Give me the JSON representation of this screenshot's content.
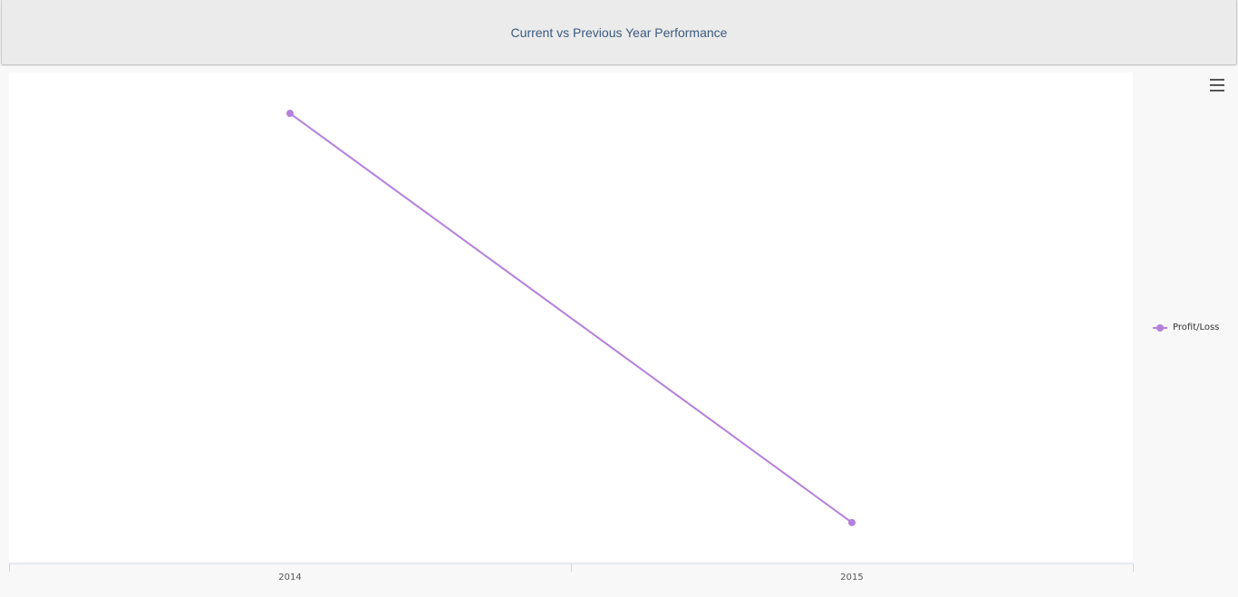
{
  "header": {
    "title": "Current vs Previous Year Performance"
  },
  "toolbar": {
    "menu_icon": "hamburger-menu-icon"
  },
  "colors": {
    "series": "#b57fdc",
    "title": "#3a5a80",
    "axis": "#ccd6eb"
  },
  "chart_data": {
    "type": "line",
    "categories": [
      "2014",
      "2015"
    ],
    "series": [
      {
        "name": "Profit/Loss",
        "values": [
          100,
          0
        ]
      }
    ],
    "title": "",
    "xlabel": "",
    "ylabel": "",
    "ylim": [
      -10,
      110
    ],
    "grid": false,
    "legend": "right"
  }
}
